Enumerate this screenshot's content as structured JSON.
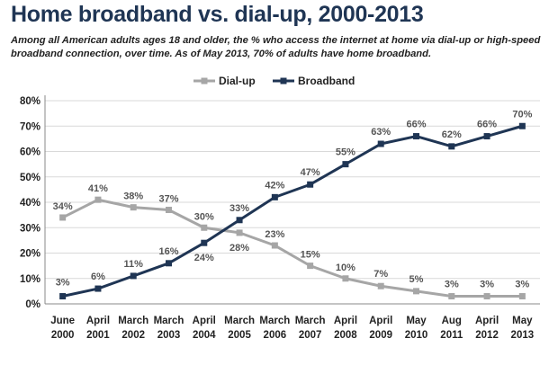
{
  "title": "Home broadband vs. dial-up, 2000-2013",
  "subtitle": "Among all American adults ages 18 and older, the % who access the internet at home via dial-up or high-speed broadband connection, over time. As of May 2013, 70% of adults have home broadband.",
  "chart_data": {
    "type": "line",
    "categories": [
      [
        "June",
        "2000"
      ],
      [
        "April",
        "2001"
      ],
      [
        "March",
        "2002"
      ],
      [
        "March",
        "2003"
      ],
      [
        "April",
        "2004"
      ],
      [
        "March",
        "2005"
      ],
      [
        "March",
        "2006"
      ],
      [
        "March",
        "2007"
      ],
      [
        "April",
        "2008"
      ],
      [
        "April",
        "2009"
      ],
      [
        "May",
        "2010"
      ],
      [
        "Aug",
        "2011"
      ],
      [
        "April",
        "2012"
      ],
      [
        "May",
        "2013"
      ]
    ],
    "series": [
      {
        "name": "Dial-up",
        "color": "#a6a6a6",
        "values": [
          34,
          41,
          38,
          37,
          30,
          28,
          23,
          15,
          10,
          7,
          5,
          3,
          3,
          3
        ]
      },
      {
        "name": "Broadband",
        "color": "#1f3554",
        "values": [
          3,
          6,
          11,
          16,
          24,
          33,
          42,
          47,
          55,
          63,
          66,
          62,
          66,
          70
        ]
      }
    ],
    "ylim": [
      0,
      80
    ],
    "yticks": [
      "0%",
      "10%",
      "20%",
      "30%",
      "40%",
      "50%",
      "60%",
      "70%",
      "80%"
    ],
    "grid": "horizontal",
    "legend": "top-center"
  }
}
